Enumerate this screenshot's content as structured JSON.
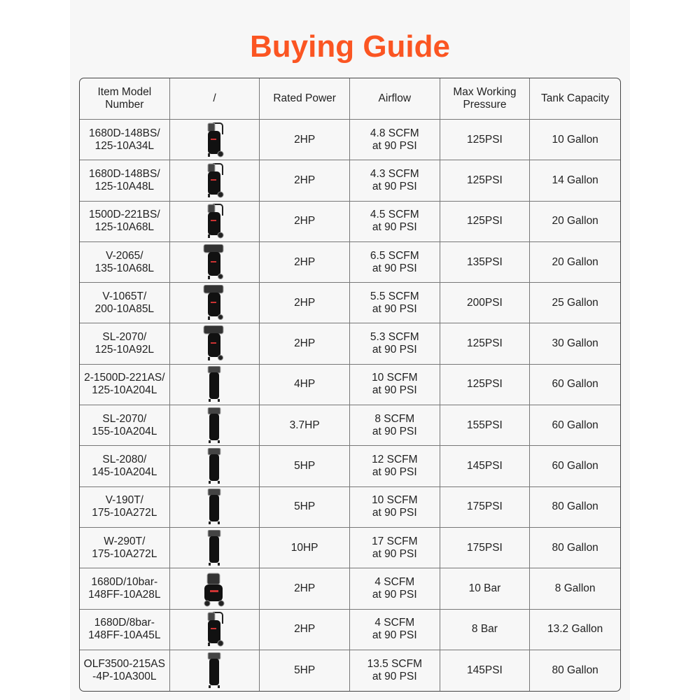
{
  "title": "Buying Guide",
  "colors": {
    "title": "#fb5522",
    "panel": "#f7f7f7",
    "border": "#777777"
  },
  "table": {
    "headers": [
      [
        "Item Model",
        "Number"
      ],
      [
        "/"
      ],
      [
        "Rated Power"
      ],
      [
        "Airflow"
      ],
      [
        "Max Working",
        "Pressure"
      ],
      [
        "Tank Capacity"
      ]
    ],
    "rows": [
      {
        "model": [
          "1680D-148BS/",
          "125-10A34L"
        ],
        "image": "vertical-compressor-with-handle",
        "power": "2HP",
        "airflow": [
          "4.8 SCFM",
          "at 90 PSI"
        ],
        "pressure": "125PSI",
        "tank": "10 Gallon"
      },
      {
        "model": [
          "1680D-148BS/",
          "125-10A48L"
        ],
        "image": "vertical-compressor-with-handle",
        "power": "2HP",
        "airflow": [
          "4.3 SCFM",
          "at 90 PSI"
        ],
        "pressure": "125PSI",
        "tank": "14 Gallon"
      },
      {
        "model": [
          "1500D-221BS/",
          "125-10A68L"
        ],
        "image": "vertical-compressor-with-handle",
        "power": "2HP",
        "airflow": [
          "4.5 SCFM",
          "at 90 PSI"
        ],
        "pressure": "125PSI",
        "tank": "20 Gallon"
      },
      {
        "model": [
          "V-2065/",
          "135-10A68L"
        ],
        "image": "vertical-compressor-top-pump",
        "power": "2HP",
        "airflow": [
          "6.5 SCFM",
          "at 90 PSI"
        ],
        "pressure": "135PSI",
        "tank": "20 Gallon"
      },
      {
        "model": [
          "V-1065T/",
          "200-10A85L"
        ],
        "image": "vertical-compressor-top-pump",
        "power": "2HP",
        "airflow": [
          "5.5 SCFM",
          "at 90 PSI"
        ],
        "pressure": "200PSI",
        "tank": "25 Gallon"
      },
      {
        "model": [
          "SL-2070/",
          "125-10A92L"
        ],
        "image": "vertical-compressor-top-pump",
        "power": "2HP",
        "airflow": [
          "5.3 SCFM",
          "at 90 PSI"
        ],
        "pressure": "125PSI",
        "tank": "30 Gallon"
      },
      {
        "model": [
          "2-1500D-221AS/",
          "125-10A204L"
        ],
        "image": "tall-vertical-compressor",
        "power": "4HP",
        "airflow": [
          "10 SCFM",
          "at 90 PSI"
        ],
        "pressure": "125PSI",
        "tank": "60 Gallon"
      },
      {
        "model": [
          "SL-2070/",
          "155-10A204L"
        ],
        "image": "tall-vertical-compressor",
        "power": "3.7HP",
        "airflow": [
          "8 SCFM",
          "at 90 PSI"
        ],
        "pressure": "155PSI",
        "tank": "60 Gallon"
      },
      {
        "model": [
          "SL-2080/",
          "145-10A204L"
        ],
        "image": "tall-vertical-compressor",
        "power": "5HP",
        "airflow": [
          "12 SCFM",
          "at 90 PSI"
        ],
        "pressure": "145PSI",
        "tank": "60 Gallon"
      },
      {
        "model": [
          "V-190T/",
          "175-10A272L"
        ],
        "image": "tall-vertical-compressor",
        "power": "5HP",
        "airflow": [
          "10 SCFM",
          "at 90 PSI"
        ],
        "pressure": "175PSI",
        "tank": "80 Gallon"
      },
      {
        "model": [
          "W-290T/",
          "175-10A272L"
        ],
        "image": "tall-vertical-compressor",
        "power": "10HP",
        "airflow": [
          "17 SCFM",
          "at 90 PSI"
        ],
        "pressure": "175PSI",
        "tank": "80 Gallon"
      },
      {
        "model": [
          "1680D/10bar-",
          "148FF-10A28L"
        ],
        "image": "short-compressor-with-wheels",
        "power": "2HP",
        "airflow": [
          "4 SCFM",
          "at 90 PSI"
        ],
        "pressure": "10 Bar",
        "tank": "8 Gallon"
      },
      {
        "model": [
          "1680D/8bar-",
          "148FF-10A45L"
        ],
        "image": "vertical-compressor-with-handle",
        "power": "2HP",
        "airflow": [
          "4 SCFM",
          "at 90 PSI"
        ],
        "pressure": "8 Bar",
        "tank": "13.2 Gallon"
      },
      {
        "model": [
          "OLF3500-215AS",
          "-4P-10A300L"
        ],
        "image": "tall-vertical-compressor",
        "power": "5HP",
        "airflow": [
          "13.5 SCFM",
          "at 90 PSI"
        ],
        "pressure": "145PSI",
        "tank": "80 Gallon"
      }
    ]
  }
}
